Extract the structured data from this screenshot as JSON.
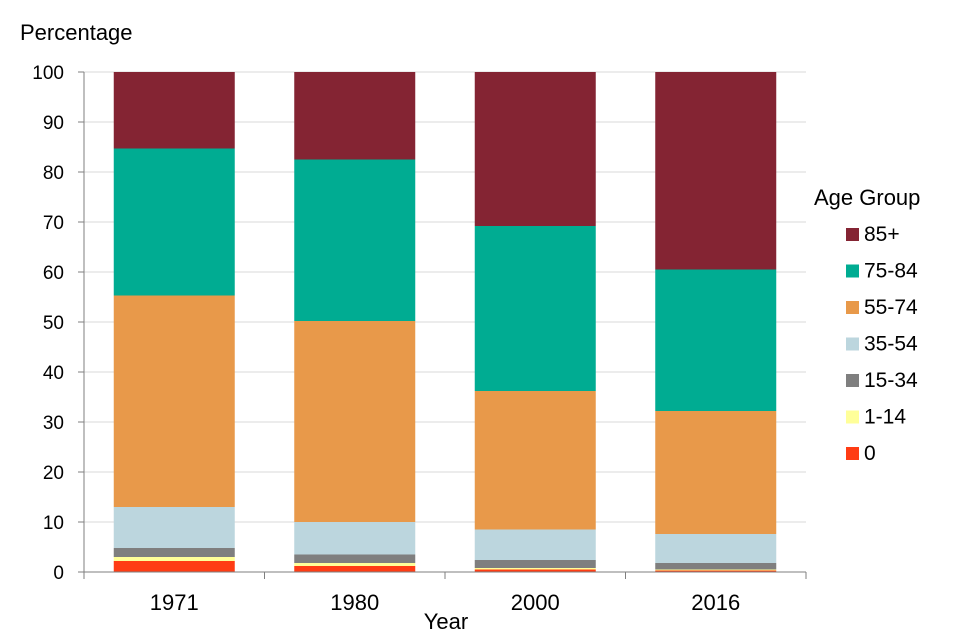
{
  "chart_data": {
    "type": "bar",
    "stacked": true,
    "title": "",
    "ylabel": "Percentage",
    "xlabel": "Year",
    "ylim": [
      0,
      100
    ],
    "yticks": [
      0,
      10,
      20,
      30,
      40,
      50,
      60,
      70,
      80,
      90,
      100
    ],
    "grid": true,
    "legend_title": "Age Group",
    "legend_position": "right",
    "categories": [
      "1971",
      "1980",
      "2000",
      "2016"
    ],
    "series": [
      {
        "name": "0",
        "color": "#ff3c14",
        "values": [
          2.2,
          1.2,
          0.5,
          0.3
        ]
      },
      {
        "name": "1-14",
        "color": "#ffff99",
        "values": [
          0.8,
          0.6,
          0.3,
          0.2
        ]
      },
      {
        "name": "15-34",
        "color": "#7f7f7f",
        "values": [
          1.8,
          1.7,
          1.6,
          1.3
        ]
      },
      {
        "name": "35-54",
        "color": "#bcd6de",
        "values": [
          8.2,
          6.5,
          6.1,
          5.8
        ]
      },
      {
        "name": "55-74",
        "color": "#e8994a",
        "values": [
          42.3,
          40.2,
          27.7,
          24.6
        ]
      },
      {
        "name": "75-84",
        "color": "#00ac92",
        "values": [
          29.4,
          32.3,
          33.0,
          28.3
        ]
      },
      {
        "name": "85+",
        "color": "#842433",
        "values": [
          15.3,
          17.5,
          30.8,
          39.5
        ]
      }
    ]
  }
}
